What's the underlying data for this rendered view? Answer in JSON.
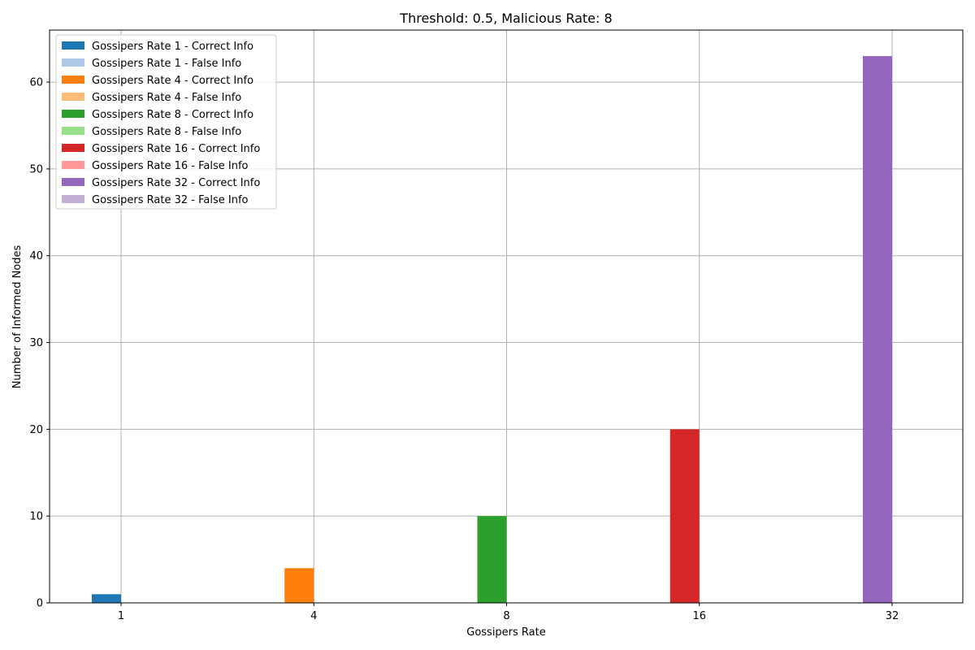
{
  "chart_data": {
    "type": "bar",
    "title": "Threshold: 0.5, Malicious Rate: 8",
    "xlabel": "Gossipers Rate",
    "ylabel": "Number of Informed Nodes",
    "categories": [
      "1",
      "4",
      "8",
      "16",
      "32"
    ],
    "ylim": [
      0,
      66
    ],
    "yticks": [
      0,
      10,
      20,
      30,
      40,
      50,
      60
    ],
    "grid": true,
    "legend_position": "top-left",
    "series": [
      {
        "name": "Gossipers Rate 1 - Correct Info",
        "color": "#1f77b4",
        "values": [
          1,
          null,
          null,
          null,
          null
        ]
      },
      {
        "name": "Gossipers Rate 1 - False Info",
        "color": "#aec7e8",
        "values": [
          0,
          null,
          null,
          null,
          null
        ]
      },
      {
        "name": "Gossipers Rate 4 - Correct Info",
        "color": "#ff7f0e",
        "values": [
          null,
          4,
          null,
          null,
          null
        ]
      },
      {
        "name": "Gossipers Rate 4 - False Info",
        "color": "#ffbb78",
        "values": [
          null,
          0,
          null,
          null,
          null
        ]
      },
      {
        "name": "Gossipers Rate 8 - Correct Info",
        "color": "#2ca02c",
        "values": [
          null,
          null,
          10,
          null,
          null
        ]
      },
      {
        "name": "Gossipers Rate 8 - False Info",
        "color": "#98df8a",
        "values": [
          null,
          null,
          0,
          null,
          null
        ]
      },
      {
        "name": "Gossipers Rate 16 - Correct Info",
        "color": "#d62728",
        "values": [
          null,
          null,
          null,
          20,
          null
        ]
      },
      {
        "name": "Gossipers Rate 16 - False Info",
        "color": "#ff9896",
        "values": [
          null,
          null,
          null,
          0,
          null
        ]
      },
      {
        "name": "Gossipers Rate 32 - Correct Info",
        "color": "#9467bd",
        "values": [
          null,
          null,
          null,
          null,
          63
        ]
      },
      {
        "name": "Gossipers Rate 32 - False Info",
        "color": "#c5b0d5",
        "values": [
          null,
          null,
          null,
          null,
          0
        ]
      }
    ]
  }
}
